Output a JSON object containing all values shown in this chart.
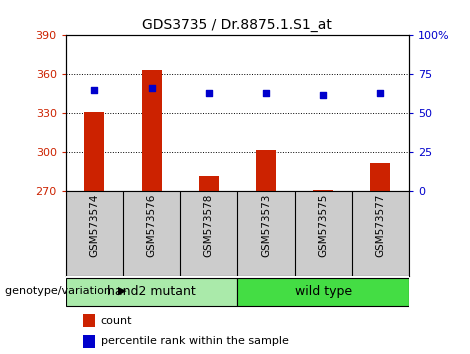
{
  "title": "GDS3735 / Dr.8875.1.S1_at",
  "samples": [
    "GSM573574",
    "GSM573576",
    "GSM573578",
    "GSM573573",
    "GSM573575",
    "GSM573577"
  ],
  "counts": [
    331,
    363,
    282,
    302,
    271,
    292
  ],
  "percentile_ranks": [
    65,
    66,
    63,
    63,
    62,
    63
  ],
  "ylim_left": [
    270,
    390
  ],
  "yticks_left": [
    270,
    300,
    330,
    360,
    390
  ],
  "ylim_right": [
    0,
    100
  ],
  "yticks_right": [
    0,
    25,
    50,
    75,
    100
  ],
  "yticklabels_right": [
    "0",
    "25",
    "50",
    "75",
    "100%"
  ],
  "bar_color": "#cc2200",
  "dot_color": "#0000cc",
  "groups": [
    {
      "label": "hand2 mutant",
      "n_samples": 3,
      "color": "#aaeaaa"
    },
    {
      "label": "wild type",
      "n_samples": 3,
      "color": "#44dd44"
    }
  ],
  "group_label": "genotype/variation",
  "legend_count_label": "count",
  "legend_pct_label": "percentile rank within the sample",
  "bar_width": 0.35,
  "grid_color": "#000000",
  "grid_linestyle": ":",
  "background_plot": "#ffffff",
  "background_samples": "#cccccc"
}
